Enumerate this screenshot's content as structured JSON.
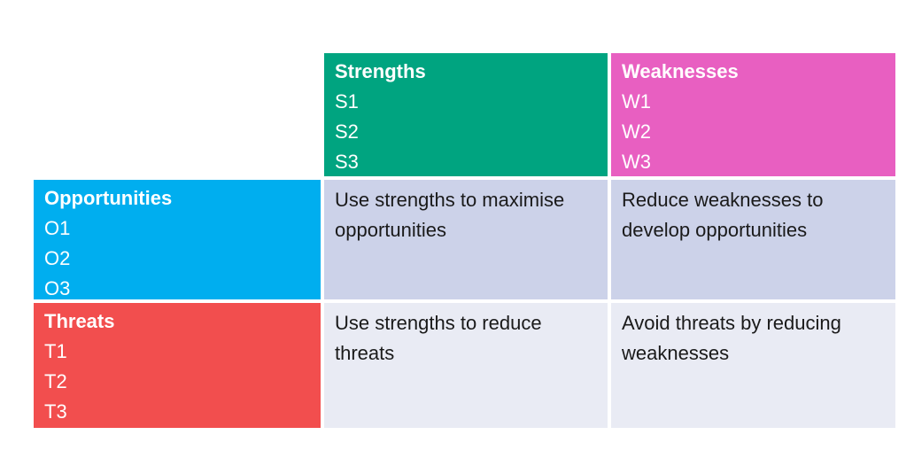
{
  "slide": {
    "matrix": {
      "column_headers": [
        {
          "title": "Strengths",
          "items": [
            "S1",
            "S2",
            "S3"
          ]
        },
        {
          "title": "Weaknesses",
          "items": [
            "W1",
            "W2",
            "W3"
          ]
        }
      ],
      "row_headers": [
        {
          "title": "Opportunities",
          "items": [
            "O1",
            "O2",
            "O3"
          ]
        },
        {
          "title": "Threats",
          "items": [
            "T1",
            "T2",
            "T3"
          ]
        }
      ],
      "strategies": {
        "strengths_opportunities": "Use strengths to maximise opportunities",
        "weaknesses_opportunities": "Reduce weaknesses to develop opportunities",
        "strengths_threats": "Use strengths to reduce threats",
        "weaknesses_threats": "Avoid threats by reducing weaknesses"
      }
    },
    "colors": {
      "strengths_bg": "#00A480",
      "weaknesses_bg": "#E85FC1",
      "opportunities_bg": "#00AEEF",
      "threats_bg": "#F24E4E",
      "strategy_row_middle_bg": "#CCD2E9",
      "strategy_row_bottom_bg": "#E9EBF4",
      "header_text": "#FFFFFF",
      "strategy_text": "#1A1A1A",
      "background": "#FFFFFF"
    }
  }
}
